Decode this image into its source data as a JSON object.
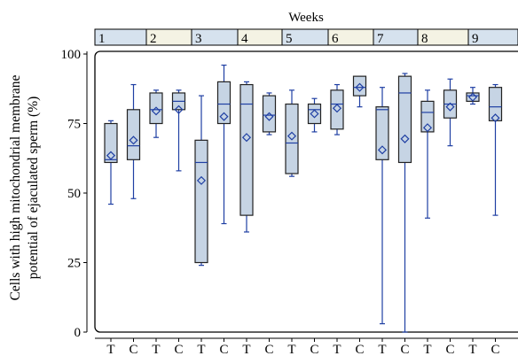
{
  "chart_data": {
    "type": "box",
    "title": "",
    "top_axis_title": "Weeks",
    "week_labels": [
      "1",
      "2",
      "3",
      "4",
      "5",
      "6",
      "7",
      "8",
      "9"
    ],
    "ylabel_line1": "Cells with high mitochondrial membrane",
    "ylabel_line2": "potential of ejaculated sperm (%)",
    "ylim": [
      0,
      100
    ],
    "yticks": [
      "0",
      "25",
      "50",
      "75",
      "100"
    ],
    "categories": [
      "T",
      "C",
      "T",
      "C",
      "T",
      "C",
      "T",
      "C",
      "T",
      "C",
      "T",
      "C",
      "T",
      "C",
      "T",
      "C",
      "T",
      "C"
    ],
    "boxes": [
      {
        "min": 46,
        "q1": 61,
        "median": 62,
        "q3": 75,
        "max": 76,
        "mean": 63.5
      },
      {
        "min": 48,
        "q1": 62,
        "median": 67,
        "q3": 80,
        "max": 89,
        "mean": 69
      },
      {
        "min": 70,
        "q1": 75,
        "median": 80,
        "q3": 86,
        "max": 87,
        "mean": 79.5
      },
      {
        "min": 58,
        "q1": 80,
        "median": 83,
        "q3": 86,
        "max": 87,
        "mean": 80
      },
      {
        "min": 24,
        "q1": 25,
        "median": 61,
        "q3": 69,
        "max": 85,
        "mean": 54.5
      },
      {
        "min": 39,
        "q1": 75,
        "median": 82,
        "q3": 90,
        "max": 96,
        "mean": 77.5
      },
      {
        "min": 36,
        "q1": 42,
        "median": 82,
        "q3": 89,
        "max": 90,
        "mean": 70
      },
      {
        "min": 71,
        "q1": 72,
        "median": 78,
        "q3": 85,
        "max": 86,
        "mean": 77.5
      },
      {
        "min": 56,
        "q1": 57,
        "median": 68,
        "q3": 82,
        "max": 87,
        "mean": 70.5
      },
      {
        "min": 72,
        "q1": 75,
        "median": 80,
        "q3": 82,
        "max": 84,
        "mean": 78.5
      },
      {
        "min": 71,
        "q1": 73,
        "median": 82,
        "q3": 87,
        "max": 89,
        "mean": 80.5
      },
      {
        "min": 81,
        "q1": 85,
        "median": 88,
        "q3": 92,
        "max": 92,
        "mean": 88
      },
      {
        "min": 3,
        "q1": 62,
        "median": 80,
        "q3": 81,
        "max": 88,
        "mean": 65.5
      },
      {
        "min": 0,
        "q1": 61,
        "median": 86,
        "q3": 92,
        "max": 93,
        "mean": 69.5
      },
      {
        "min": 41,
        "q1": 72,
        "median": 79,
        "q3": 83,
        "max": 87,
        "mean": 73.5
      },
      {
        "min": 67,
        "q1": 77,
        "median": 82,
        "q3": 87,
        "max": 91,
        "mean": 81
      },
      {
        "min": 82,
        "q1": 83,
        "median": 85,
        "q3": 86,
        "max": 88,
        "mean": 84.5
      },
      {
        "min": 42,
        "q1": 76,
        "median": 81,
        "q3": 88,
        "max": 89,
        "mean": 77
      }
    ],
    "colors": {
      "box_fill": "#c6d4e4",
      "box_stroke": "#222222",
      "whisker": "#1f3fa3",
      "week_fill_odd": "#d6e2ee",
      "week_fill_even": "#f4f3e4",
      "axis": "#000000"
    }
  }
}
